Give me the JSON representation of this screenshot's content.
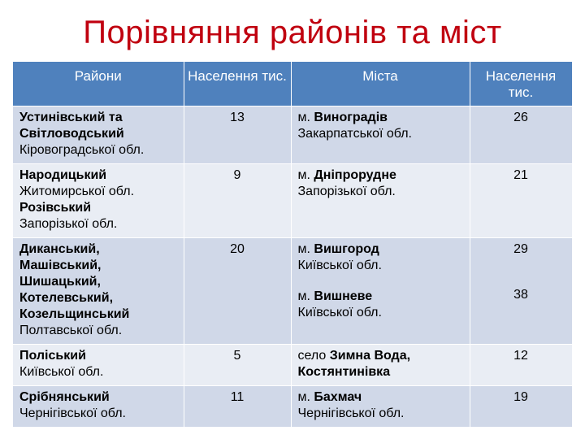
{
  "title": "Порівняння районів та міст",
  "headers": {
    "districts": "Райони",
    "population1": "Населення тис.",
    "cities": "Міста",
    "population2": "Населення тис."
  },
  "rows": [
    {
      "district_parts": [
        {
          "text": "Устинівський та Світловодський",
          "bold": true
        },
        {
          "text": "Кіровоградської обл.",
          "bold": false
        }
      ],
      "district_pop": "13",
      "cities": [
        {
          "name": "м. Виноградів",
          "region": "Закарпатської обл.",
          "pop": "26"
        }
      ]
    },
    {
      "district_parts": [
        {
          "text": "Народицький",
          "bold": true
        },
        {
          "text": "Житомирської обл.",
          "bold": false
        },
        {
          "text": "Розівський",
          "bold": true
        },
        {
          "text": "Запорізької обл.",
          "bold": false
        }
      ],
      "district_pop": "9",
      "cities": [
        {
          "name": "м. Дніпрорудне",
          "region": "Запорізької обл.",
          "pop": "21"
        }
      ]
    },
    {
      "district_parts": [
        {
          "text": "Диканський, Машівський, Шишацький, Котелевський, Козельщинський",
          "bold": true
        },
        {
          "text": "Полтавської обл.",
          "bold": false
        }
      ],
      "district_pop": "20",
      "cities": [
        {
          "name": "м. Вишгород",
          "region": "Київської обл.",
          "pop": "29"
        },
        {
          "name": "м. Вишневе",
          "region": "Київської обл.",
          "pop": "38"
        }
      ]
    },
    {
      "district_parts": [
        {
          "text": "Поліський",
          "bold": true
        },
        {
          "text": "Київської обл.",
          "bold": false
        }
      ],
      "district_pop": "5",
      "cities": [
        {
          "name": "село Зимна Вода, Костянтинівка",
          "region": "",
          "pop": "12"
        }
      ]
    },
    {
      "district_parts": [
        {
          "text": "Срібнянський",
          "bold": true
        },
        {
          "text": "Чернігівської обл.",
          "bold": false
        }
      ],
      "district_pop": "11",
      "cities": [
        {
          "name": "м. Бахмач",
          "region": "Чернігівської обл.",
          "pop": "19"
        }
      ]
    }
  ]
}
